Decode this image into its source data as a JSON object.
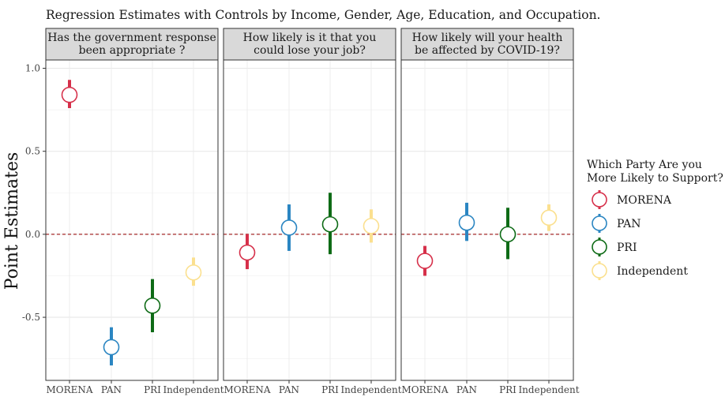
{
  "chart_data": {
    "type": "scatter",
    "title": "",
    "subtitle": "Regression Estimates with Controls by Income, Gender, Age, Education, and Occupation.",
    "ylabel": "Point Estimates",
    "xlabel": "",
    "ylim": [
      -0.88,
      1.05
    ],
    "yticks": [
      {
        "value": 1.0,
        "label": "1.0"
      },
      {
        "value": 0.5,
        "label": "0.5"
      },
      {
        "value": 0.0,
        "label": "0.0"
      },
      {
        "value": -0.5,
        "label": "-0.5"
      }
    ],
    "reference_line": 0,
    "categories": [
      "MORENA",
      "PAN",
      "PRI",
      "Independent"
    ],
    "legend": {
      "title_lines": [
        "Which Party Are you",
        " More Likely to Support?"
      ],
      "placement": "right"
    },
    "series": [
      {
        "name": "MORENA",
        "color": "#d6304a"
      },
      {
        "name": "PAN",
        "color": "#2b86c2"
      },
      {
        "name": "PRI",
        "color": "#0e6b16"
      },
      {
        "name": "Independent",
        "color": "#fbe08f"
      }
    ],
    "panels": [
      {
        "title_lines": [
          "Has the government response",
          "been appropriate ?"
        ],
        "points": [
          {
            "category": "MORENA",
            "estimate": 0.84,
            "low": 0.76,
            "high": 0.93
          },
          {
            "category": "PAN",
            "estimate": -0.68,
            "low": -0.79,
            "high": -0.56
          },
          {
            "category": "PRI",
            "estimate": -0.43,
            "low": -0.59,
            "high": -0.27
          },
          {
            "category": "Independent",
            "estimate": -0.23,
            "low": -0.31,
            "high": -0.14
          }
        ]
      },
      {
        "title_lines": [
          "How likely is it that you",
          "could lose your job?"
        ],
        "points": [
          {
            "category": "MORENA",
            "estimate": -0.11,
            "low": -0.21,
            "high": 0.0
          },
          {
            "category": "PAN",
            "estimate": 0.04,
            "low": -0.1,
            "high": 0.18
          },
          {
            "category": "PRI",
            "estimate": 0.06,
            "low": -0.12,
            "high": 0.25
          },
          {
            "category": "Independent",
            "estimate": 0.05,
            "low": -0.05,
            "high": 0.15
          }
        ]
      },
      {
        "title_lines": [
          "How likely will your health",
          "be affected by COVID-19?"
        ],
        "points": [
          {
            "category": "MORENA",
            "estimate": -0.16,
            "low": -0.25,
            "high": -0.07
          },
          {
            "category": "PAN",
            "estimate": 0.07,
            "low": -0.04,
            "high": 0.19
          },
          {
            "category": "PRI",
            "estimate": 0.0,
            "low": -0.15,
            "high": 0.16
          },
          {
            "category": "Independent",
            "estimate": 0.1,
            "low": 0.02,
            "high": 0.18
          }
        ]
      }
    ]
  }
}
